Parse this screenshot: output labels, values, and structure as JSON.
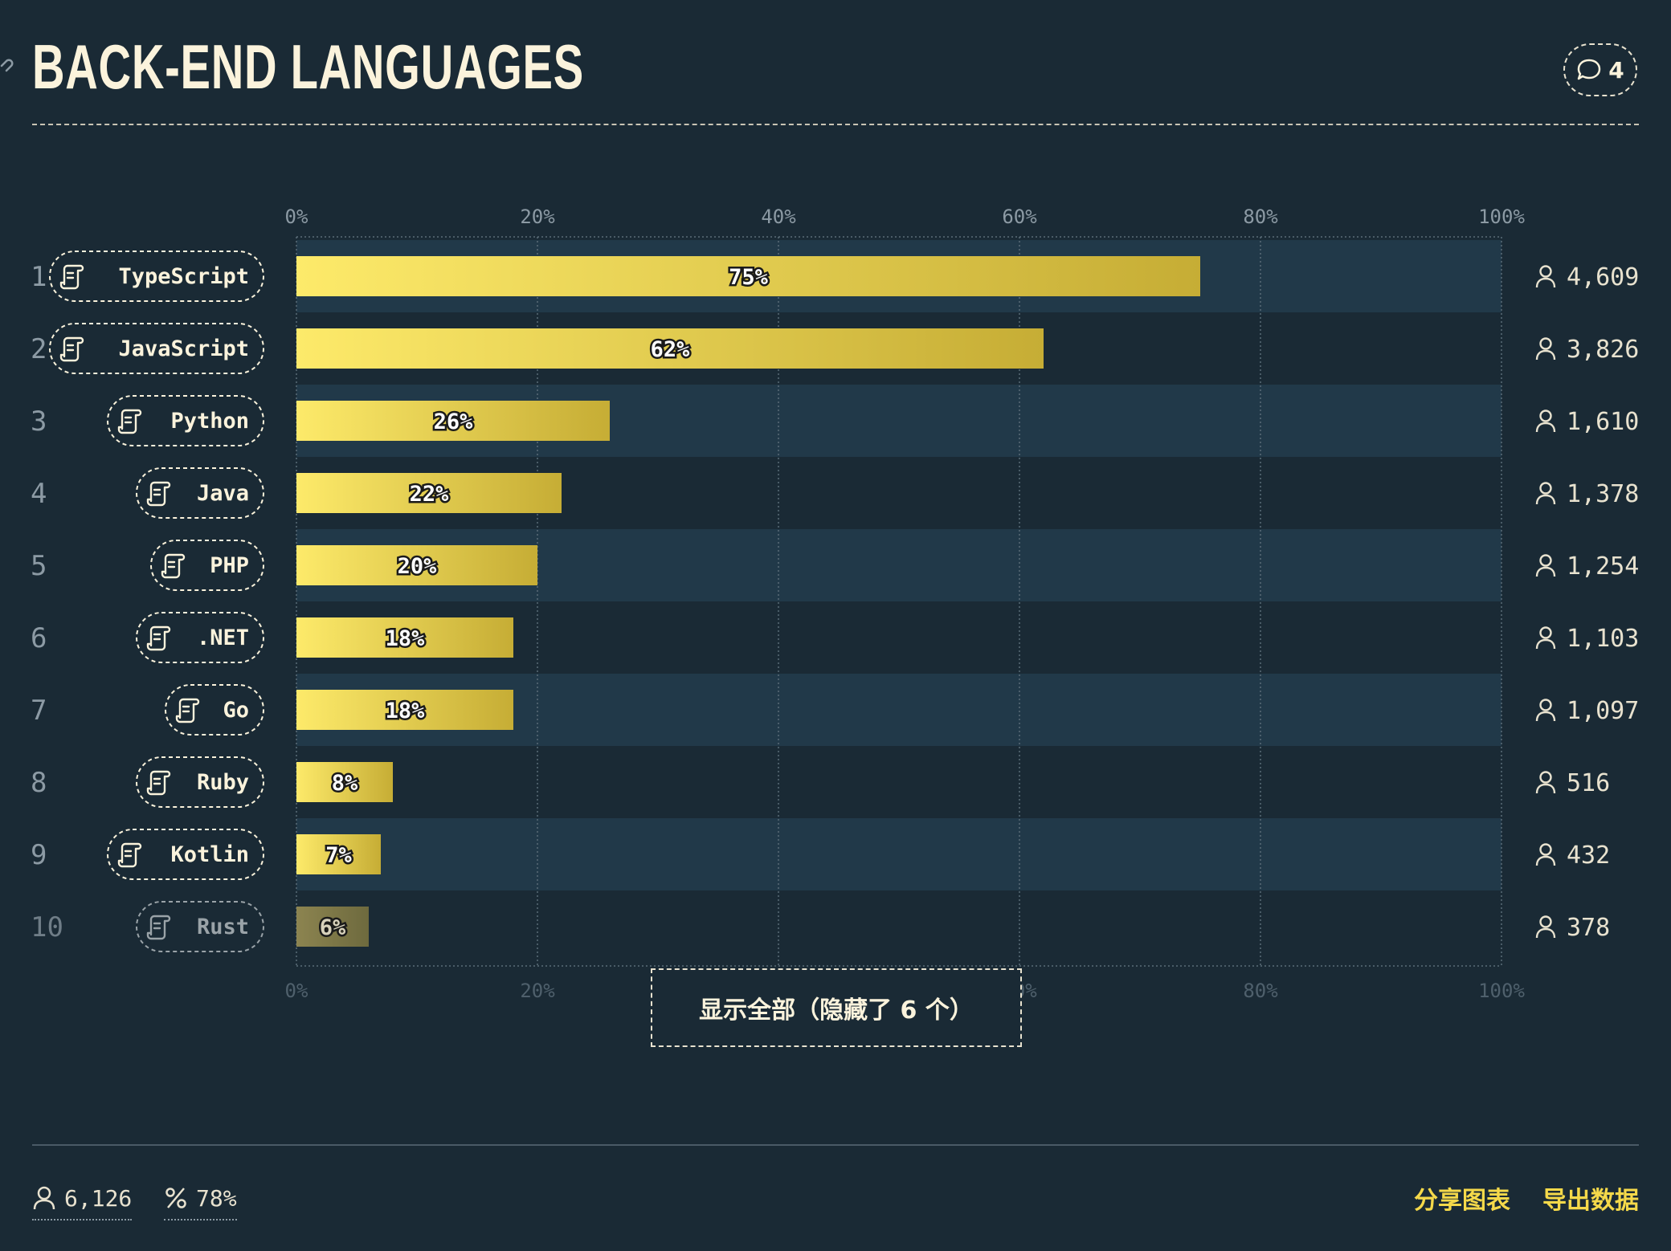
{
  "header": {
    "title": "BACK-END LANGUAGES",
    "comment_count": "4"
  },
  "chart_data": {
    "type": "bar",
    "orientation": "horizontal",
    "title": "BACK-END LANGUAGES",
    "categories": [
      "TypeScript",
      "JavaScript",
      "Python",
      "Java",
      "PHP",
      ".NET",
      "Go",
      "Ruby",
      "Kotlin",
      "Rust"
    ],
    "ranks": [
      "1",
      "2",
      "3",
      "4",
      "5",
      "6",
      "7",
      "8",
      "9",
      "10"
    ],
    "values": [
      75,
      62,
      26,
      22,
      20,
      18,
      18,
      8,
      7,
      6
    ],
    "value_labels": [
      "75%",
      "62%",
      "26%",
      "22%",
      "20%",
      "18%",
      "18%",
      "8%",
      "7%",
      "6%"
    ],
    "counts": [
      "4,609",
      "3,826",
      "1,610",
      "1,378",
      "1,254",
      "1,103",
      "1,097",
      "516",
      "432",
      "378"
    ],
    "xlim": [
      0,
      100
    ],
    "xticks": [
      "0%",
      "20%",
      "40%",
      "60%",
      "80%",
      "100%"
    ],
    "grid": true,
    "colors": {
      "bar_start": "#fdea6a",
      "bar_end": "#c6ad35",
      "bar_faded_start": "#8c8450",
      "bar_faded_end": "#6e6a3e",
      "row_band": "#213949",
      "background": "#1a2a35"
    }
  },
  "show_all_button": "显示全部（隐藏了 6 个）",
  "footer": {
    "respondents": "6,126",
    "percent": "78%",
    "share_label": "分享图表",
    "export_label": "导出数据"
  }
}
